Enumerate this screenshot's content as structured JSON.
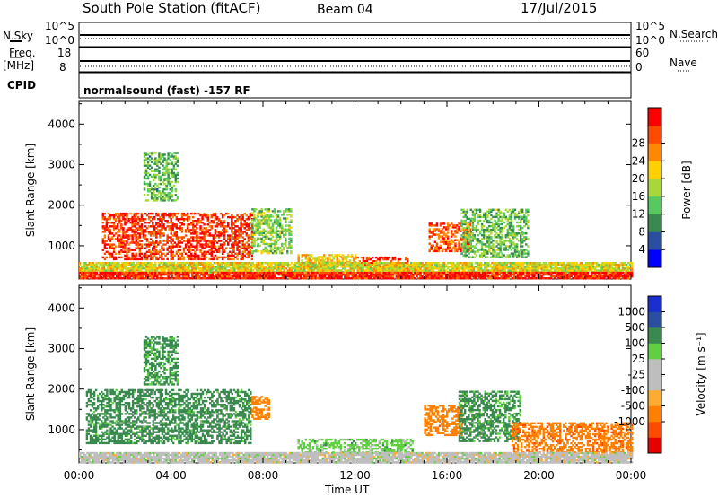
{
  "header": {
    "station": "South Pole Station (fitACF)",
    "beam": "Beam 04",
    "date": "17/Jul/2015",
    "cpid_label": "CPID",
    "cpid_value": "normalsound (fast) -157 RF"
  },
  "nsky_panel": {
    "left_label": "N.Sky",
    "right_label": "N.Search",
    "left_ticks": [
      "10^5",
      "10^0"
    ],
    "right_ticks": [
      "10^5",
      "10^0"
    ]
  },
  "freq_panel": {
    "left_label_1": "Freq.",
    "left_label_2": "[MHz]",
    "right_label": "Nave",
    "left_ticks": [
      "18",
      "8"
    ],
    "right_ticks": [
      "60",
      "0"
    ]
  },
  "colors": {
    "power_scale": [
      "#0000ff",
      "#2a4fa0",
      "#3a8a50",
      "#58c860",
      "#a8d838",
      "#ffd000",
      "#ff8800",
      "#ff4a00",
      "#ff0000"
    ],
    "velocity_scale": [
      "#e60000",
      "#ff4a00",
      "#ff8000",
      "#ffaa30",
      "#bebebe",
      "#bebebe",
      "#60d040",
      "#3a8a50",
      "#2a4fa0",
      "#1a2fd0"
    ]
  },
  "chart_data": [
    {
      "type": "heatmap",
      "name": "power",
      "ylabel": "Slant Range [km]",
      "xlabel": "Time UT",
      "x_ticks": [
        "00:00",
        "04:00",
        "08:00",
        "12:00",
        "16:00",
        "20:00",
        "00:00"
      ],
      "y_ticks": [
        "1000",
        "2000",
        "3000",
        "4000"
      ],
      "xlim": [
        0,
        24
      ],
      "ylim": [
        180,
        4560
      ],
      "colorbar_label": "Power [dB]",
      "colorbar_ticks": [
        "4",
        "8",
        "12",
        "16",
        "20",
        "24",
        "28"
      ],
      "colorbar_range": [
        0,
        32
      ],
      "echo_regions": [
        {
          "t0": 1.0,
          "t1": 7.5,
          "r0": 650,
          "r1": 1800,
          "level": 28
        },
        {
          "t0": 7.5,
          "t1": 9.2,
          "r0": 800,
          "r1": 1900,
          "level": 14
        },
        {
          "t0": 9.5,
          "t1": 12.0,
          "r0": 480,
          "r1": 760,
          "level": 20
        },
        {
          "t0": 12.0,
          "t1": 14.3,
          "r0": 420,
          "r1": 720,
          "level": 28
        },
        {
          "t0": 15.2,
          "t1": 17.0,
          "r0": 850,
          "r1": 1550,
          "level": 26
        },
        {
          "t0": 16.6,
          "t1": 19.5,
          "r0": 700,
          "r1": 1900,
          "level": 13
        },
        {
          "t0": 0.0,
          "t1": 24.0,
          "r0": 330,
          "r1": 580,
          "level": 18
        },
        {
          "t0": 0.0,
          "t1": 24.0,
          "r0": 180,
          "r1": 330,
          "level": 29
        },
        {
          "t0": 2.8,
          "t1": 4.3,
          "r0": 2100,
          "r1": 3300,
          "level": 12
        }
      ]
    },
    {
      "type": "heatmap",
      "name": "velocity",
      "ylabel": "Slant Range [km]",
      "xlabel": "Time UT",
      "x_ticks": [
        "00:00",
        "04:00",
        "08:00",
        "12:00",
        "16:00",
        "20:00",
        "00:00"
      ],
      "y_ticks": [
        "1000",
        "2000",
        "3000",
        "4000"
      ],
      "xlim": [
        0,
        24
      ],
      "ylim": [
        180,
        4560
      ],
      "colorbar_label": "Velocity [m s⁻¹]",
      "colorbar_ticks": [
        "1000",
        "500",
        "100",
        "25",
        "-25",
        "-100",
        "-500",
        "-1000"
      ],
      "echo_regions": [
        {
          "t0": 0.3,
          "t1": 7.5,
          "r0": 650,
          "r1": 2000,
          "level": 200
        },
        {
          "t0": 7.5,
          "t1": 8.3,
          "r0": 1250,
          "r1": 1800,
          "level": -300
        },
        {
          "t0": 9.5,
          "t1": 14.5,
          "r0": 420,
          "r1": 780,
          "level": 60
        },
        {
          "t0": 15.0,
          "t1": 16.6,
          "r0": 850,
          "r1": 1600,
          "level": -300
        },
        {
          "t0": 16.5,
          "t1": 19.2,
          "r0": 700,
          "r1": 1950,
          "level": 150
        },
        {
          "t0": 18.8,
          "t1": 24.0,
          "r0": 420,
          "r1": 1150,
          "level": -350
        },
        {
          "t0": 0.0,
          "t1": 24.0,
          "r0": 180,
          "r1": 420,
          "level": 0
        },
        {
          "t0": 2.8,
          "t1": 4.3,
          "r0": 2100,
          "r1": 3300,
          "level": 150
        }
      ]
    }
  ]
}
